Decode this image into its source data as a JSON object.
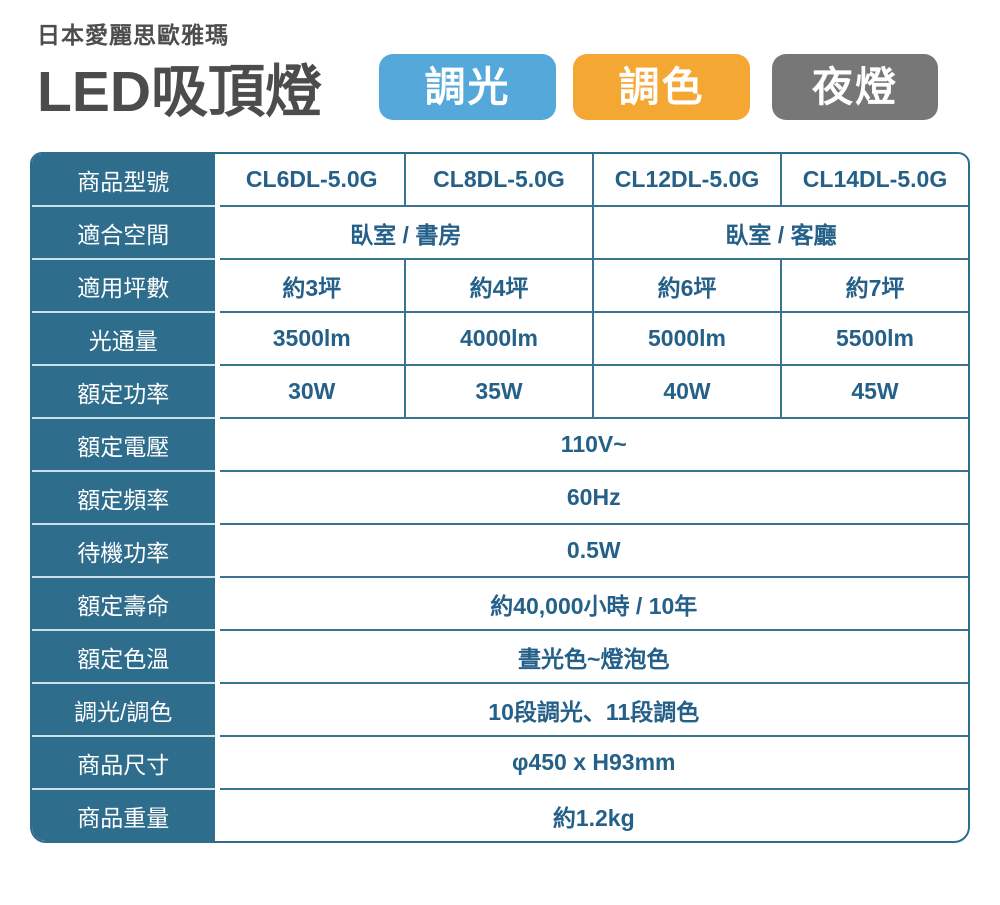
{
  "header": {
    "brand": "日本愛麗思歐雅瑪",
    "title": "LED吸頂燈",
    "badges": [
      {
        "name": "dimming",
        "label": "調光",
        "color": "#54a8da"
      },
      {
        "name": "color-tuning",
        "label": "調色",
        "color": "#f5a734"
      },
      {
        "name": "night-light",
        "label": "夜燈",
        "color": "#777777"
      }
    ]
  },
  "colors": {
    "table_header_bg": "#2f6d8d",
    "table_line": "#3b7492",
    "table_light_line": "#cfe0e9",
    "value_text": "#256089",
    "title_text": "#4c4c4c"
  },
  "table": {
    "rows": [
      {
        "label": "商品型號",
        "cells": [
          {
            "t": "CL6DL-5.0G"
          },
          {
            "t": "CL8DL-5.0G"
          },
          {
            "t": "CL12DL-5.0G"
          },
          {
            "t": "CL14DL-5.0G"
          }
        ]
      },
      {
        "label": "適合空間",
        "cells": [
          {
            "t": "臥室 / 書房",
            "span": 2
          },
          {
            "t": "臥室 / 客廳",
            "span": 2
          }
        ]
      },
      {
        "label": "適用坪數",
        "cells": [
          {
            "t": "約3坪"
          },
          {
            "t": "約4坪"
          },
          {
            "t": "約6坪"
          },
          {
            "t": "約7坪"
          }
        ]
      },
      {
        "label": "光通量",
        "cells": [
          {
            "t": "3500lm"
          },
          {
            "t": "4000lm"
          },
          {
            "t": "5000lm"
          },
          {
            "t": "5500lm"
          }
        ]
      },
      {
        "label": "額定功率",
        "cells": [
          {
            "t": "30W"
          },
          {
            "t": "35W"
          },
          {
            "t": "40W"
          },
          {
            "t": "45W"
          }
        ]
      },
      {
        "label": "額定電壓",
        "cells": [
          {
            "t": "110V~",
            "span": 4
          }
        ]
      },
      {
        "label": "額定頻率",
        "cells": [
          {
            "t": "60Hz",
            "span": 4
          }
        ]
      },
      {
        "label": "待機功率",
        "cells": [
          {
            "t": "0.5W",
            "span": 4
          }
        ]
      },
      {
        "label": "額定壽命",
        "cells": [
          {
            "t": "約40,000小時 / 10年",
            "span": 4
          }
        ]
      },
      {
        "label": "額定色溫",
        "cells": [
          {
            "t": "晝光色~燈泡色",
            "span": 4
          }
        ]
      },
      {
        "label": "調光/調色",
        "cells": [
          {
            "t": "10段調光、11段調色",
            "span": 4
          }
        ]
      },
      {
        "label": "商品尺寸",
        "cells": [
          {
            "t": "φ450 x H93mm",
            "span": 4
          }
        ]
      },
      {
        "label": "商品重量",
        "cells": [
          {
            "t": "約1.2kg",
            "span": 4
          }
        ]
      }
    ]
  }
}
